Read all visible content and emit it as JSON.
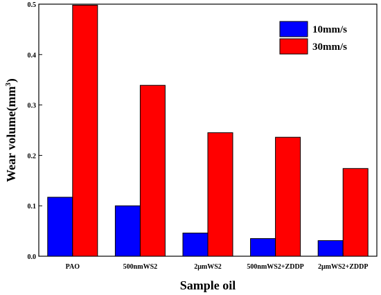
{
  "chart_data": {
    "type": "bar",
    "title": "",
    "xlabel": "Sample oil",
    "ylabel": "Wear volume(mm",
    "ylabel_sup": "3",
    "ylabel_close": ")",
    "categories": [
      "PAO",
      "500nmWS2",
      "2μmWS2",
      "500nmWS2+ZDDP",
      "2μmWS2+ZDDP"
    ],
    "series": [
      {
        "name": "10mm/s",
        "color": "#0000ff",
        "values": [
          0.117,
          0.1,
          0.046,
          0.035,
          0.031
        ]
      },
      {
        "name": "30mm/s",
        "color": "#ff0000",
        "values": [
          0.498,
          0.339,
          0.245,
          0.236,
          0.174
        ]
      }
    ],
    "ylim": [
      0.0,
      0.5
    ],
    "yticks": [
      "0.0",
      "0.1",
      "0.2",
      "0.3",
      "0.4",
      "0.5"
    ],
    "legend_position": "top-right",
    "grid": false
  }
}
